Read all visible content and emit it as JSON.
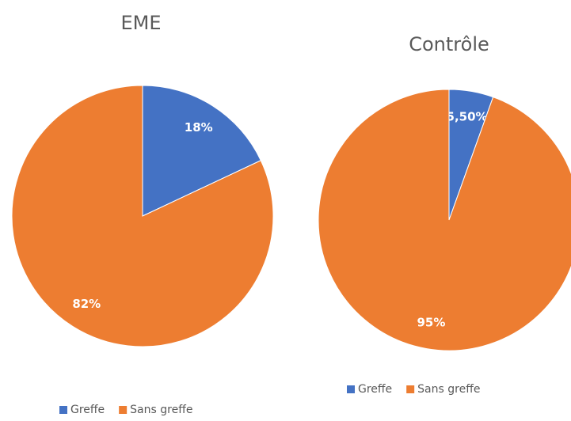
{
  "chart_data": [
    {
      "type": "pie",
      "title": "EME",
      "categories": [
        "Greffe",
        "Sans greffe"
      ],
      "values": [
        18,
        82
      ],
      "value_labels": [
        "18%",
        "82%"
      ],
      "colors": [
        "#4472c4",
        "#ed7d31"
      ]
    },
    {
      "type": "pie",
      "title": "Contrôle",
      "categories": [
        "Greffe",
        "Sans greffe"
      ],
      "values": [
        5.5,
        95
      ],
      "value_labels": [
        "5,50%",
        "95%"
      ],
      "colors": [
        "#4472c4",
        "#ed7d31"
      ]
    }
  ]
}
